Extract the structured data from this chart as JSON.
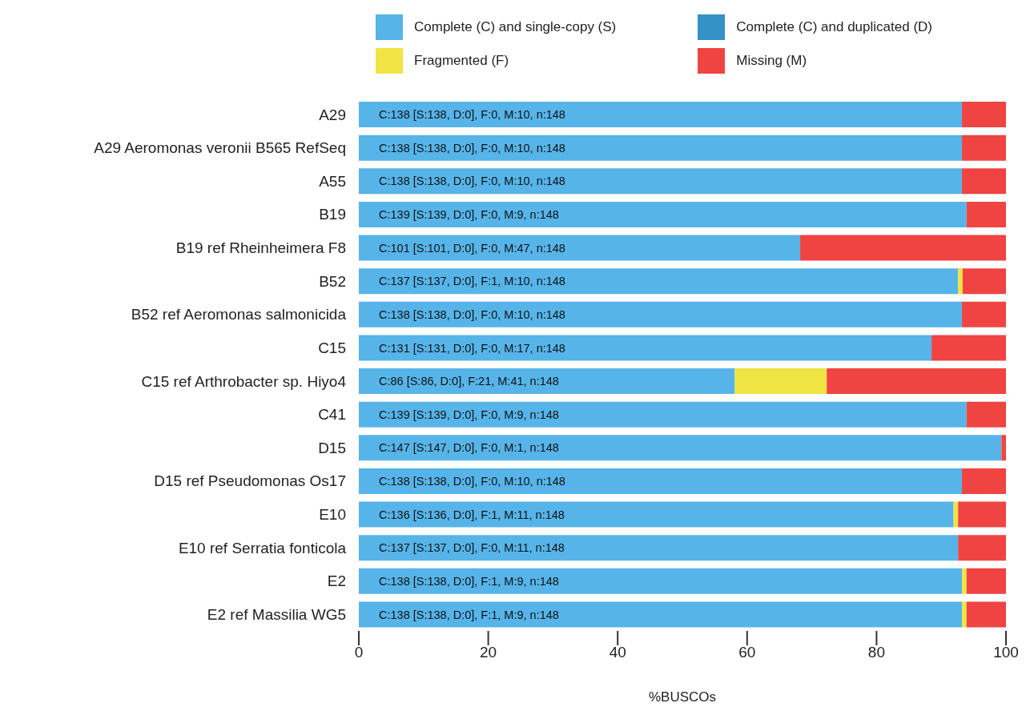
{
  "chart_data": {
    "type": "bar",
    "orientation": "horizontal",
    "stacked": true,
    "xlabel": "%BUSCOs",
    "categories": [
      "A29",
      "A29 Aeromonas veronii B565 RefSeq",
      "A55",
      "B19",
      "B19 ref Rheinheimera F8",
      "B52",
      "B52 ref Aeromonas salmonicida",
      "C15",
      "C15 ref Arthrobacter sp. Hiyo4",
      "C41",
      "D15",
      "D15 ref Pseudomonas Os17",
      "E10",
      "E10 ref Serratia fonticola",
      "E2",
      "E2 ref Massilia WG5"
    ],
    "series": [
      {
        "name": "Complete (C) and single-copy (S)",
        "color": "#56b4e9",
        "values": [
          93.2,
          93.2,
          93.2,
          93.9,
          68.2,
          92.6,
          93.2,
          88.5,
          58.1,
          93.9,
          99.3,
          93.2,
          91.9,
          92.6,
          93.2,
          93.2
        ],
        "value_labels": [
          "C:138 [S:138, D:0], F:0, M:10, n:148",
          "C:138 [S:138, D:0], F:0, M:10, n:148",
          "C:138 [S:138, D:0], F:0, M:10, n:148",
          "C:139 [S:139, D:0], F:0, M:9, n:148",
          "C:101 [S:101, D:0], F:0, M:47, n:148",
          "C:137 [S:137, D:0], F:1, M:10, n:148",
          "C:138 [S:138, D:0], F:0, M:10, n:148",
          "C:131 [S:131, D:0], F:0, M:17, n:148",
          "C:86 [S:86, D:0], F:21, M:41, n:148",
          "C:139 [S:139, D:0], F:0, M:9, n:148",
          "C:147 [S:147, D:0], F:0, M:1, n:148",
          "C:138 [S:138, D:0], F:0, M:10, n:148",
          "C:136 [S:136, D:0], F:1, M:11, n:148",
          "C:137 [S:137, D:0], F:0, M:11, n:148",
          "C:138 [S:138, D:0], F:1, M:9, n:148",
          "C:138 [S:138, D:0], F:1, M:9, n:148"
        ]
      },
      {
        "name": "Complete (C) and duplicated (D)",
        "color": "#3492c7",
        "values": [
          0,
          0,
          0,
          0,
          0,
          0,
          0,
          0,
          0,
          0,
          0,
          0,
          0,
          0,
          0,
          0
        ]
      },
      {
        "name": "Fragmented (F)",
        "color": "#f0e442",
        "values": [
          0,
          0,
          0,
          0,
          0,
          0.7,
          0,
          0,
          14.2,
          0,
          0,
          0,
          0.7,
          0,
          0.7,
          0.7
        ]
      },
      {
        "name": "Missing (M)",
        "color": "#f04442",
        "values": [
          6.8,
          6.8,
          6.8,
          6.1,
          31.8,
          6.7,
          6.8,
          11.5,
          27.7,
          6.1,
          0.7,
          6.8,
          7.4,
          7.4,
          6.1,
          6.1
        ]
      }
    ],
    "xlim": [
      0,
      100
    ],
    "xticks": [
      0,
      20,
      40,
      60,
      80,
      100
    ],
    "grid": false,
    "legend": "top right"
  }
}
